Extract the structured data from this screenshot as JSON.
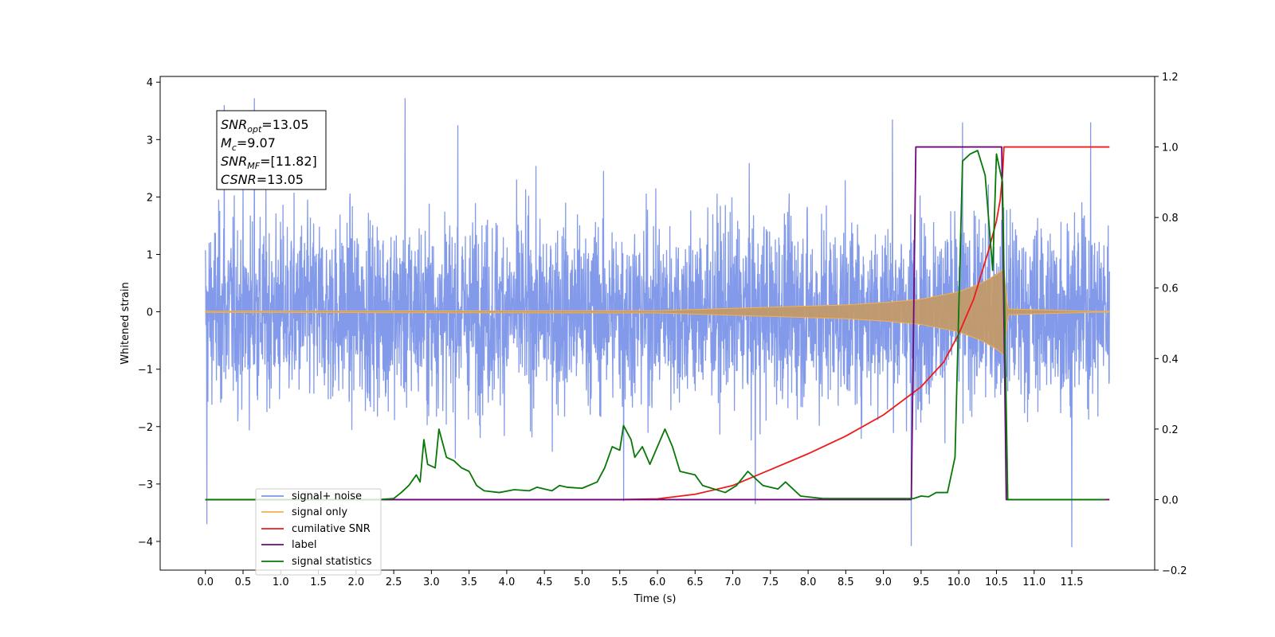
{
  "chart_data": {
    "type": "line",
    "xlabel": "Time (s)",
    "ylabel": "Whitened strain",
    "x_ticks": [
      "0.0",
      "0.5",
      "1.0",
      "1.5",
      "2.0",
      "2.5",
      "3.0",
      "3.5",
      "4.0",
      "4.5",
      "5.0",
      "5.5",
      "6.0",
      "6.5",
      "7.0",
      "7.5",
      "8.0",
      "8.5",
      "9.0",
      "9.5",
      "10.0",
      "10.5",
      "11.0",
      "11.5"
    ],
    "xlim": [
      -0.6,
      12.6
    ],
    "y_left_ticks": [
      "4",
      "3",
      "2",
      "1",
      "0",
      "−1",
      "−2",
      "−3",
      "−4"
    ],
    "ylim_left": [
      -4.5,
      4.1
    ],
    "y_right_ticks": [
      "1.2",
      "1.0",
      "0.8",
      "0.6",
      "0.4",
      "0.2",
      "0.0",
      "−0.2"
    ],
    "ylim_right": [
      -0.2,
      1.2
    ],
    "grid": false,
    "legend_position": "lower-left",
    "info_box": {
      "snr_opt": {
        "sym": "SNR",
        "sub": "opt",
        "val": "=13.05"
      },
      "mc": {
        "sym": "M",
        "sub": "c",
        "val": "=9.07"
      },
      "snr_mf": {
        "sym": "SNR",
        "sub": "MF",
        "val": "=[11.82]"
      },
      "csnr": {
        "sym": "CSNR",
        "sub": "",
        "val": "=13.05"
      }
    },
    "series": [
      {
        "name": "signal+ noise",
        "color": "#7b95e8",
        "axis": "left",
        "t_range": [
          0.0,
          12.0
        ],
        "typical_amplitude": 1.9,
        "peaks": [
          {
            "t": 0.02,
            "v": -3.7
          },
          {
            "t": 0.25,
            "v": 3.6
          },
          {
            "t": 0.65,
            "v": 3.72
          },
          {
            "t": 2.65,
            "v": 3.72
          },
          {
            "t": 3.35,
            "v": 3.25
          },
          {
            "t": 5.55,
            "v": -3.3
          },
          {
            "t": 7.3,
            "v": -3.35
          },
          {
            "t": 9.12,
            "v": 3.35
          },
          {
            "t": 9.37,
            "v": -4.08
          },
          {
            "t": 10.05,
            "v": 3.3
          },
          {
            "t": 11.5,
            "v": -4.1
          },
          {
            "t": 11.75,
            "v": 3.3
          }
        ]
      },
      {
        "name": "signal only",
        "color": "#f5b14e",
        "axis": "left",
        "chirp": {
          "t_start": 0.0,
          "t_merger": 10.6,
          "t_end": 12.0,
          "envelope": [
            [
              0.0,
              0.01
            ],
            [
              6.0,
              0.02
            ],
            [
              6.5,
              0.04
            ],
            [
              7.0,
              0.06
            ],
            [
              7.5,
              0.08
            ],
            [
              8.0,
              0.1
            ],
            [
              8.5,
              0.12
            ],
            [
              9.0,
              0.16
            ],
            [
              9.5,
              0.22
            ],
            [
              10.0,
              0.35
            ],
            [
              10.3,
              0.5
            ],
            [
              10.5,
              0.65
            ],
            [
              10.6,
              0.75
            ],
            [
              10.65,
              0.05
            ],
            [
              12.0,
              0.0
            ]
          ]
        }
      },
      {
        "name": "cumilative SNR",
        "color": "#ee1b1b",
        "axis": "right",
        "points": [
          [
            0.0,
            0.0
          ],
          [
            5.5,
            0.0
          ],
          [
            6.0,
            0.002
          ],
          [
            6.5,
            0.015
          ],
          [
            7.0,
            0.04
          ],
          [
            7.5,
            0.085
          ],
          [
            8.0,
            0.13
          ],
          [
            8.5,
            0.18
          ],
          [
            9.0,
            0.24
          ],
          [
            9.5,
            0.32
          ],
          [
            9.8,
            0.39
          ],
          [
            10.0,
            0.47
          ],
          [
            10.2,
            0.57
          ],
          [
            10.4,
            0.71
          ],
          [
            10.5,
            0.79
          ],
          [
            10.55,
            0.85
          ],
          [
            10.58,
            0.92
          ],
          [
            10.6,
            1.0
          ],
          [
            12.0,
            1.0
          ]
        ]
      },
      {
        "name": "label",
        "color": "#6c0a78",
        "axis": "right",
        "points": [
          [
            0.0,
            0.0
          ],
          [
            9.37,
            0.0
          ],
          [
            9.43,
            1.0
          ],
          [
            10.57,
            1.0
          ],
          [
            10.63,
            0.0
          ],
          [
            12.0,
            0.0
          ]
        ]
      },
      {
        "name": "signal statistics",
        "color": "#087708",
        "axis": "right",
        "points": [
          [
            0.0,
            0.0
          ],
          [
            2.3,
            0.0
          ],
          [
            2.5,
            0.003
          ],
          [
            2.6,
            0.02
          ],
          [
            2.7,
            0.04
          ],
          [
            2.8,
            0.07
          ],
          [
            2.85,
            0.05
          ],
          [
            2.9,
            0.17
          ],
          [
            2.95,
            0.1
          ],
          [
            3.05,
            0.09
          ],
          [
            3.1,
            0.2
          ],
          [
            3.2,
            0.12
          ],
          [
            3.3,
            0.11
          ],
          [
            3.4,
            0.09
          ],
          [
            3.5,
            0.08
          ],
          [
            3.6,
            0.04
          ],
          [
            3.7,
            0.025
          ],
          [
            3.9,
            0.02
          ],
          [
            4.1,
            0.028
          ],
          [
            4.3,
            0.025
          ],
          [
            4.4,
            0.035
          ],
          [
            4.6,
            0.025
          ],
          [
            4.7,
            0.04
          ],
          [
            4.8,
            0.035
          ],
          [
            5.0,
            0.032
          ],
          [
            5.2,
            0.05
          ],
          [
            5.3,
            0.09
          ],
          [
            5.4,
            0.15
          ],
          [
            5.5,
            0.14
          ],
          [
            5.55,
            0.21
          ],
          [
            5.65,
            0.17
          ],
          [
            5.7,
            0.12
          ],
          [
            5.8,
            0.15
          ],
          [
            5.9,
            0.1
          ],
          [
            6.1,
            0.2
          ],
          [
            6.2,
            0.15
          ],
          [
            6.3,
            0.08
          ],
          [
            6.5,
            0.07
          ],
          [
            6.6,
            0.04
          ],
          [
            6.9,
            0.02
          ],
          [
            7.05,
            0.04
          ],
          [
            7.2,
            0.08
          ],
          [
            7.3,
            0.06
          ],
          [
            7.4,
            0.04
          ],
          [
            7.6,
            0.03
          ],
          [
            7.7,
            0.05
          ],
          [
            7.9,
            0.01
          ],
          [
            8.2,
            0.003
          ],
          [
            9.4,
            0.003
          ],
          [
            9.5,
            0.01
          ],
          [
            9.6,
            0.008
          ],
          [
            9.7,
            0.02
          ],
          [
            9.85,
            0.02
          ],
          [
            9.95,
            0.12
          ],
          [
            10.05,
            0.96
          ],
          [
            10.15,
            0.98
          ],
          [
            10.25,
            0.99
          ],
          [
            10.35,
            0.92
          ],
          [
            10.45,
            0.65
          ],
          [
            10.5,
            0.98
          ],
          [
            10.58,
            0.9
          ],
          [
            10.65,
            0.0
          ],
          [
            11.95,
            0.0
          ]
        ]
      }
    ]
  }
}
